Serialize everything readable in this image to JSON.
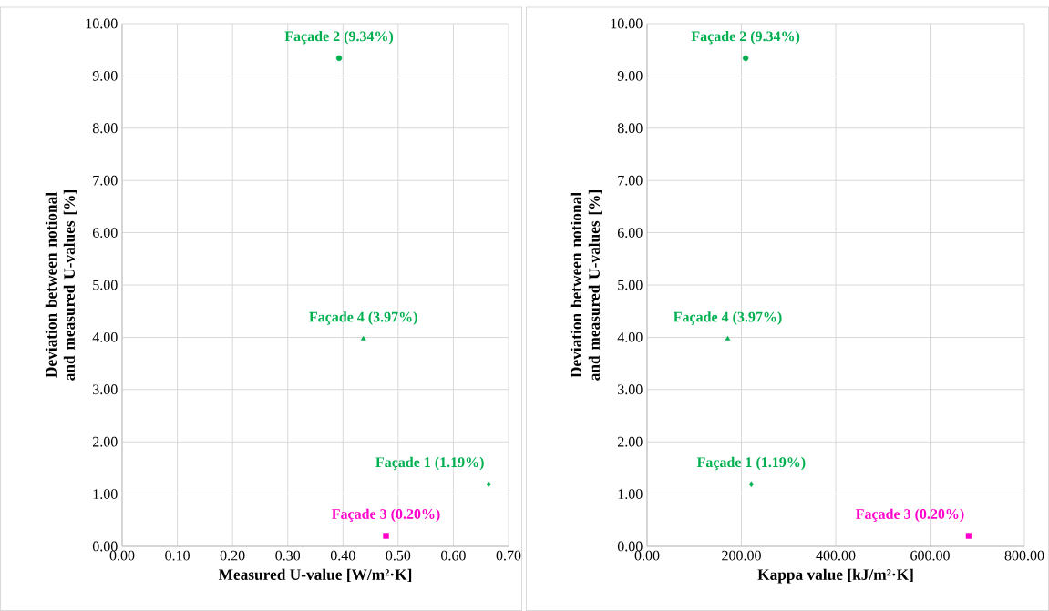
{
  "chart_data": [
    {
      "type": "scatter",
      "xlabel": "Measured U-value [W/m²·K]",
      "ylabel": "Deviation between notional and measured U-values [%]",
      "xlim": [
        0,
        0.7
      ],
      "ylim": [
        0,
        10
      ],
      "xticks": [
        {
          "value": 0,
          "label": "0.00"
        },
        {
          "value": 0.1,
          "label": "0.10"
        },
        {
          "value": 0.2,
          "label": "0.20"
        },
        {
          "value": 0.3,
          "label": "0.30"
        },
        {
          "value": 0.4,
          "label": "0.40"
        },
        {
          "value": 0.5,
          "label": "0.50"
        },
        {
          "value": 0.6,
          "label": "0.60"
        },
        {
          "value": 0.7,
          "label": "0.70"
        }
      ],
      "yticks": [
        {
          "value": 0,
          "label": "0.00"
        },
        {
          "value": 1,
          "label": "1.00"
        },
        {
          "value": 2,
          "label": "2.00"
        },
        {
          "value": 3,
          "label": "3.00"
        },
        {
          "value": 4,
          "label": "4.00"
        },
        {
          "value": 5,
          "label": "5.00"
        },
        {
          "value": 6,
          "label": "6.00"
        },
        {
          "value": 7,
          "label": "7.00"
        },
        {
          "value": 8,
          "label": "8.00"
        },
        {
          "value": 9,
          "label": "9.00"
        },
        {
          "value": 10,
          "label": "10.00"
        }
      ],
      "grid": true,
      "series": [
        {
          "name": "Façade 1 (1.19%)",
          "color": "#00b050",
          "marker": "diamond",
          "x": [
            0.664
          ],
          "values": [
            1.19
          ]
        },
        {
          "name": "Façade 2 (9.34%)",
          "color": "#00b050",
          "marker": "circle",
          "x": [
            0.393
          ],
          "values": [
            9.34
          ]
        },
        {
          "name": "Façade 3 (0.20%)",
          "color": "#ff00cc",
          "marker": "square",
          "x": [
            0.478
          ],
          "values": [
            0.2
          ]
        },
        {
          "name": "Façade 4 (3.97%)",
          "color": "#00b050",
          "marker": "triangle",
          "x": [
            0.437
          ],
          "values": [
            3.97
          ]
        }
      ]
    },
    {
      "type": "scatter",
      "xlabel": "Kappa value [kJ/m²·K]",
      "ylabel": "Deviation between notional and measured U-values [%]",
      "xlim": [
        0,
        800
      ],
      "ylim": [
        0,
        10
      ],
      "xticks": [
        {
          "value": 0,
          "label": "0.00"
        },
        {
          "value": 200,
          "label": "200.00"
        },
        {
          "value": 400,
          "label": "400.00"
        },
        {
          "value": 600,
          "label": "600.00"
        },
        {
          "value": 800,
          "label": "800.00"
        }
      ],
      "yticks": [
        {
          "value": 0,
          "label": "0.00"
        },
        {
          "value": 1,
          "label": "1.00"
        },
        {
          "value": 2,
          "label": "2.00"
        },
        {
          "value": 3,
          "label": "3.00"
        },
        {
          "value": 4,
          "label": "4.00"
        },
        {
          "value": 5,
          "label": "5.00"
        },
        {
          "value": 6,
          "label": "6.00"
        },
        {
          "value": 7,
          "label": "7.00"
        },
        {
          "value": 8,
          "label": "8.00"
        },
        {
          "value": 9,
          "label": "9.00"
        },
        {
          "value": 10,
          "label": "10.00"
        }
      ],
      "grid": true,
      "series": [
        {
          "name": "Façade 1 (1.19%)",
          "color": "#00b050",
          "marker": "diamond",
          "x": [
            221
          ],
          "values": [
            1.19
          ]
        },
        {
          "name": "Façade 2 (9.34%)",
          "color": "#00b050",
          "marker": "circle",
          "x": [
            209
          ],
          "values": [
            9.34
          ]
        },
        {
          "name": "Façade 3 (0.20%)",
          "color": "#ff00cc",
          "marker": "square",
          "x": [
            682
          ],
          "values": [
            0.2
          ]
        },
        {
          "name": "Façade 4 (3.97%)",
          "color": "#00b050",
          "marker": "triangle",
          "x": [
            171
          ],
          "values": [
            3.97
          ]
        }
      ]
    }
  ]
}
